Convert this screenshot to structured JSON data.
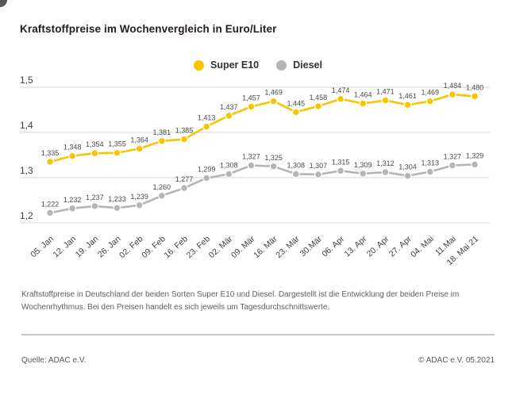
{
  "title": "Kraftstoffpreise im Wochenvergleich in Euro/Liter",
  "legend": {
    "items": [
      {
        "label": "Super E10",
        "color": "#F6C500"
      },
      {
        "label": "Diesel",
        "color": "#B5B5B5"
      }
    ]
  },
  "chart_data": {
    "type": "line",
    "title": "Kraftstoffpreise im Wochenvergleich in Euro/Liter",
    "xlabel": "",
    "ylabel": "Euro/Liter",
    "grid": true,
    "legend_position": "top-center",
    "decimal_separator": ",",
    "ylim": [
      1.15,
      1.52
    ],
    "yticks": [
      1.5,
      1.4,
      1.3,
      1.2
    ],
    "ytick_labels": [
      "1,5",
      "1,4",
      "1,3",
      "1,2"
    ],
    "categories": [
      "05. Jan",
      "12. Jan",
      "19. Jan",
      "26. Jan",
      "02. Feb",
      "09. Feb",
      "16. Feb",
      "23. Feb",
      "02. Mär",
      "09. Mär",
      "16. Mär",
      "23. Mär",
      "30.Mär",
      "06. Apr",
      "13. Apr",
      "20. Apr",
      "27. Apr",
      "04. Mai",
      "11.Mai",
      "18. Mai 21"
    ],
    "series": [
      {
        "name": "Super E10",
        "color": "#F6C500",
        "values": [
          1.335,
          1.348,
          1.354,
          1.355,
          1.364,
          1.381,
          1.385,
          1.413,
          1.437,
          1.457,
          1.469,
          1.445,
          1.458,
          1.474,
          1.464,
          1.471,
          1.461,
          1.469,
          1.484,
          1.48
        ]
      },
      {
        "name": "Diesel",
        "color": "#B5B5B5",
        "values": [
          1.222,
          1.232,
          1.237,
          1.233,
          1.239,
          1.26,
          1.277,
          1.299,
          1.308,
          1.327,
          1.325,
          1.308,
          1.307,
          1.315,
          1.309,
          1.312,
          1.304,
          1.313,
          1.327,
          1.329
        ]
      }
    ]
  },
  "footnote": "Kraftstoffpreise in Deutschland der beiden Sorten Super E10 und Diesel. Dargestellt ist die Entwicklung der beiden Preise im Wochenrhythmus. Bei den Preisen handelt es sich jeweils um Tagesdurchschnittswerte.",
  "source": "Quelle: ADAC e.V.",
  "copyright": "© ADAC e.V. 05.2021",
  "colors": {
    "grid": "#dcdcdc",
    "axis_text": "#3f3f3f",
    "value_label": "#4a4a4a",
    "title": "#26201d"
  }
}
